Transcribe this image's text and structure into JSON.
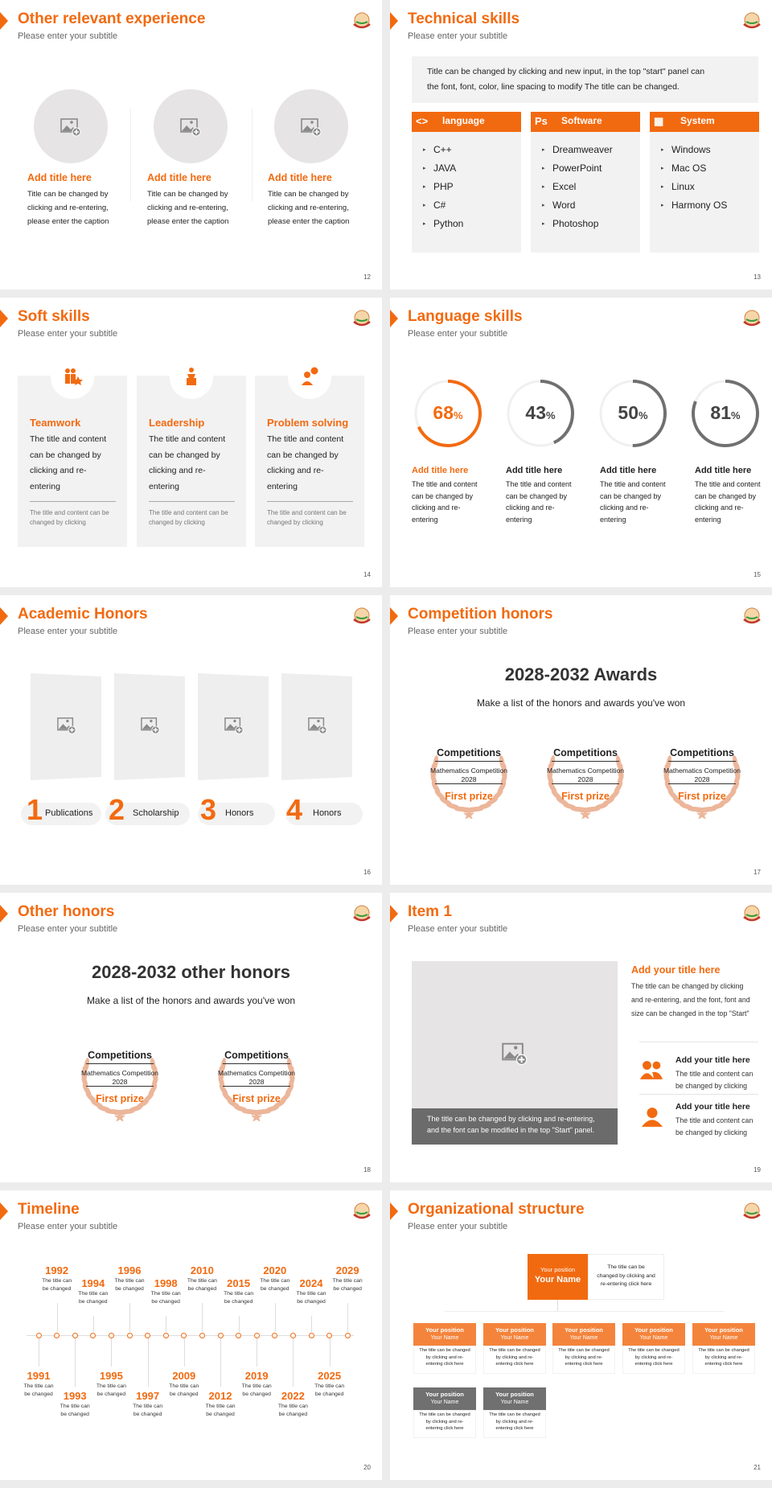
{
  "colors": {
    "accent": "#f26a10",
    "accent_light": "#f4843c",
    "gray_panel": "#f2f2f2",
    "dark_gray": "#6b6b6b",
    "laurel": "#ecb69a",
    "ring_track": "#f0f0f0",
    "ring_gray": "#707070"
  },
  "slides": [
    {
      "type": "experience",
      "title": "Other relevant experience",
      "subtitle": "Please enter your subtitle",
      "page": "12",
      "items": [
        {
          "icon": "image-placeholder-icon",
          "title": "Add title here",
          "lines": [
            "Title can be changed by",
            "clicking and re-entering,",
            "please enter the caption"
          ]
        },
        {
          "icon": "image-placeholder-icon",
          "title": "Add title here",
          "lines": [
            "Title can be changed by",
            "clicking and re-entering,",
            "please enter the caption"
          ]
        },
        {
          "icon": "image-placeholder-icon",
          "title": "Add title here",
          "lines": [
            "Title can be changed by",
            "clicking and re-entering,",
            "please enter the caption"
          ]
        }
      ]
    },
    {
      "type": "technical",
      "title": "Technical skills",
      "subtitle": "Please enter your subtitle",
      "page": "13",
      "intro": [
        "Title can be changed by clicking and new input, in the top \"start\" panel can",
        "the font, font, color, line spacing to modify The title can be changed."
      ],
      "columns": [
        {
          "icon": "code-icon",
          "label": "language",
          "items": [
            "C++",
            "JAVA",
            "PHP",
            "C#",
            "Python"
          ]
        },
        {
          "icon": "photoshop-icon",
          "label": "Software",
          "items": [
            "Dreamweaver",
            "PowerPoint",
            "Excel",
            "Word",
            "Photoshop"
          ]
        },
        {
          "icon": "windows-icon",
          "label": "System",
          "items": [
            "Windows",
            "Mac OS",
            "Linux",
            "Harmony OS"
          ]
        }
      ]
    },
    {
      "type": "soft",
      "title": "Soft skills",
      "subtitle": "Please enter your subtitle",
      "page": "14",
      "cards": [
        {
          "icon": "teamwork-icon",
          "title": "Teamwork",
          "lines": [
            "The title and content",
            "can be changed by",
            "clicking and re-",
            "entering"
          ],
          "note": [
            "The title and content can be",
            "changed by clicking"
          ]
        },
        {
          "icon": "leadership-icon",
          "title": "Leadership",
          "lines": [
            "The title and content",
            "can be changed by",
            "clicking and re-",
            "entering"
          ],
          "note": [
            "The title and content can be",
            "changed by clicking"
          ]
        },
        {
          "icon": "problem-solving-icon",
          "title": "Problem solving",
          "lines": [
            "The title and content",
            "can be changed by",
            "clicking and re-",
            "entering"
          ],
          "note": [
            "The title and content can be",
            "changed by clicking"
          ]
        }
      ]
    },
    {
      "type": "language",
      "title": "Language skills",
      "subtitle": "Please enter your subtitle",
      "page": "15",
      "rings": [
        {
          "value": 68,
          "unit": "%",
          "highlight": true,
          "title": "Add title here",
          "lines": [
            "The title and content",
            "can be changed by",
            "clicking and re-",
            "entering"
          ]
        },
        {
          "value": 43,
          "unit": "%",
          "highlight": false,
          "title": "Add title here",
          "lines": [
            "The title and content",
            "can be changed by",
            "clicking and re-",
            "entering"
          ]
        },
        {
          "value": 50,
          "unit": "%",
          "highlight": false,
          "title": "Add title here",
          "lines": [
            "The title and content",
            "can be changed by",
            "clicking and re-",
            "entering"
          ]
        },
        {
          "value": 81,
          "unit": "%",
          "highlight": false,
          "title": "Add title here",
          "lines": [
            "The title and content",
            "can be changed by",
            "clicking and re-",
            "entering"
          ]
        }
      ]
    },
    {
      "type": "academic",
      "title": "Academic Honors",
      "subtitle": "Please enter your subtitle",
      "page": "16",
      "items": [
        {
          "num": "1",
          "label": "Publications"
        },
        {
          "num": "2",
          "label": "Scholarship"
        },
        {
          "num": "3",
          "label": "Honors"
        },
        {
          "num": "4",
          "label": "Honors"
        }
      ]
    },
    {
      "type": "awards",
      "title": "Competition honors",
      "subtitle": "Please enter your subtitle",
      "page": "17",
      "heading": "2028-2032 Awards",
      "sub": "Make a list of the honors and awards you've won",
      "awards": [
        {
          "name": "Competitions",
          "event": "Mathematics Competition",
          "year": "2028",
          "prize": "First prize"
        },
        {
          "name": "Competitions",
          "event": "Mathematics Competition",
          "year": "2028",
          "prize": "First prize"
        },
        {
          "name": "Competitions",
          "event": "Mathematics Competition",
          "year": "2028",
          "prize": "First prize"
        }
      ]
    },
    {
      "type": "awards",
      "title": "Other honors",
      "subtitle": "Please enter your subtitle",
      "page": "18",
      "heading": "2028-2032 other honors",
      "sub": "Make a list of the honors and awards you've won",
      "awards": [
        {
          "name": "Competitions",
          "event": "Mathematics Competition",
          "year": "2028",
          "prize": "First prize"
        },
        {
          "name": "Competitions",
          "event": "Mathematics Competition",
          "year": "2028",
          "prize": "First prize"
        }
      ]
    },
    {
      "type": "item",
      "title": "Item 1",
      "subtitle": "Please enter your subtitle",
      "page": "19",
      "caption": [
        "The title can be changed by clicking and re-entering,",
        "and the font can be modified in the top \"Start\" panel."
      ],
      "main_title": "Add your title here",
      "main_lines": [
        "The title can be changed by clicking",
        "and re-entering, and the font, font and",
        "size can be changed in the top \"Start\""
      ],
      "entries": [
        {
          "icon": "users-icon",
          "title": "Add your title here",
          "lines": [
            "The title and content can",
            "be changed by clicking"
          ]
        },
        {
          "icon": "user-icon",
          "title": "Add your title here",
          "lines": [
            "The title and content can",
            "be changed by clicking"
          ]
        }
      ]
    },
    {
      "type": "timeline",
      "title": "Timeline",
      "subtitle": "Please enter your subtitle",
      "page": "20",
      "events": [
        {
          "year": "1991",
          "side": "bottom",
          "lines": [
            "The title can",
            "be changed"
          ]
        },
        {
          "year": "1992",
          "side": "top",
          "lines": [
            "The title can",
            "be changed"
          ]
        },
        {
          "year": "1993",
          "side": "bottom",
          "lines": [
            "The title can",
            "be changed"
          ]
        },
        {
          "year": "1994",
          "side": "top",
          "lines": [
            "The title can",
            "be changed"
          ]
        },
        {
          "year": "1995",
          "side": "bottom",
          "lines": [
            "The title can",
            "be changed"
          ]
        },
        {
          "year": "1996",
          "side": "top",
          "lines": [
            "The title can",
            "be changed"
          ]
        },
        {
          "year": "1997",
          "side": "bottom",
          "lines": [
            "The title can",
            "be changed"
          ]
        },
        {
          "year": "1998",
          "side": "top",
          "lines": [
            "The title can",
            "be changed"
          ]
        },
        {
          "year": "2009",
          "side": "bottom",
          "lines": [
            "The title can",
            "be changed"
          ]
        },
        {
          "year": "2010",
          "side": "top",
          "lines": [
            "The title can",
            "be changed"
          ]
        },
        {
          "year": "2012",
          "side": "bottom",
          "lines": [
            "The title can",
            "be changed"
          ]
        },
        {
          "year": "2015",
          "side": "top",
          "lines": [
            "The title can",
            "be changed"
          ]
        },
        {
          "year": "2019",
          "side": "bottom",
          "lines": [
            "The title can",
            "be changed"
          ]
        },
        {
          "year": "2020",
          "side": "top",
          "lines": [
            "The title can",
            "be changed"
          ]
        },
        {
          "year": "2022",
          "side": "bottom",
          "lines": [
            "The title can",
            "be changed"
          ]
        },
        {
          "year": "2024",
          "side": "top",
          "lines": [
            "The title can",
            "be changed"
          ]
        },
        {
          "year": "2025",
          "side": "bottom",
          "lines": [
            "The title can",
            "be changed"
          ]
        },
        {
          "year": "2029",
          "side": "top",
          "lines": [
            "The title can",
            "be changed"
          ]
        }
      ]
    },
    {
      "type": "org",
      "title": "Organizational structure",
      "subtitle": "Please enter your subtitle",
      "page": "21",
      "top": {
        "position": "Your position",
        "name": "Your Name",
        "desc": [
          "The title can be",
          "changed by clicking and",
          "re-entering click here"
        ]
      },
      "row1": [
        {
          "position": "Your position",
          "name": "Your Name",
          "desc": [
            "The title can be changed",
            "by clicking and re-",
            "entering click here"
          ]
        },
        {
          "position": "Your position",
          "name": "Your Name",
          "desc": [
            "The title can be changed",
            "by clicking and re-",
            "entering click here"
          ]
        },
        {
          "position": "Your position",
          "name": "Your Name",
          "desc": [
            "The title can be changed",
            "by clicking and re-",
            "entering click here"
          ]
        },
        {
          "position": "Your position",
          "name": "Your Name",
          "desc": [
            "The title can be changed",
            "by clicking and re-",
            "entering click here"
          ]
        },
        {
          "position": "Your position",
          "name": "Your Name",
          "desc": [
            "The title can be changed",
            "by clicking and re-",
            "entering click here"
          ]
        }
      ],
      "row2": [
        {
          "position": "Your position",
          "name": "Your Name",
          "desc": [
            "The title can be changed",
            "by clicking and re-",
            "entering click here"
          ]
        },
        {
          "position": "Your position",
          "name": "Your Name",
          "desc": [
            "The title can be changed",
            "by clicking and re-",
            "entering click here"
          ]
        }
      ]
    }
  ]
}
